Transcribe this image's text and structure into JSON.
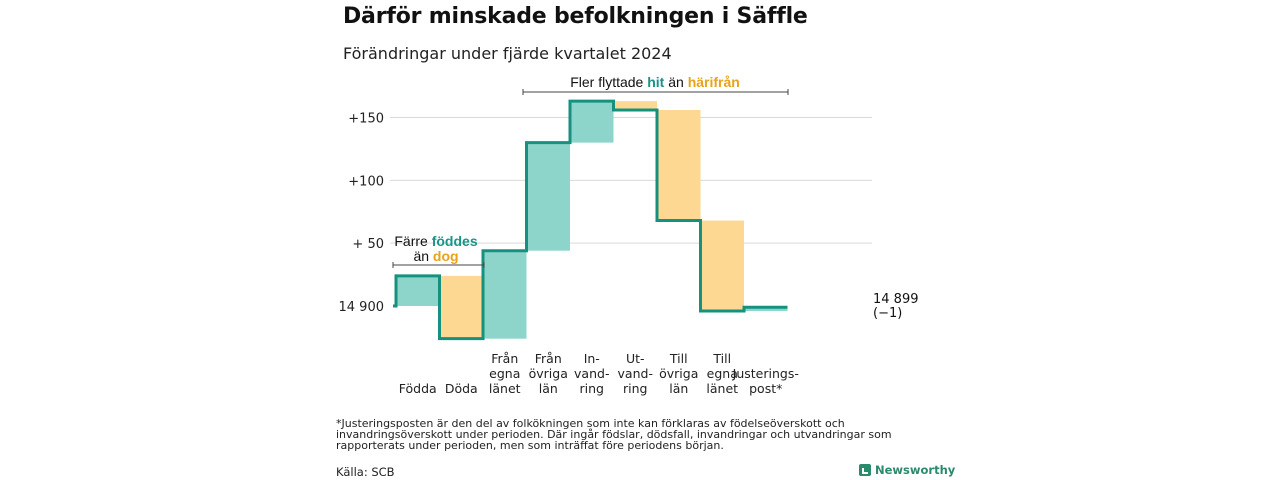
{
  "title": "Därför minskade befolkningen i Säffle",
  "subtitle": "Förändringar under fjärde kvartalet 2024",
  "annotations": {
    "left": {
      "pre": "Färre",
      "green": "föddes",
      "mid": "än",
      "orange": "dog"
    },
    "top": {
      "pre": "Fler flyttade",
      "green": "hit",
      "mid": "än",
      "orange": "härifrån"
    }
  },
  "end_label": {
    "value": "14 899",
    "change": "(−1)"
  },
  "footnote": "*Justeringsposten är den del av folkökningen som inte kan förklaras av födelseöverskott och invandringsöverskott under perioden. Där ingår födslar, dödsfall, invandringar och utvandringar som rapporterats under perioden, men som inträffat före periodens början.",
  "source": "Källa: SCB",
  "brand": "Newsworthy",
  "colors": {
    "increase": "#8dd5cb",
    "decrease": "#fdd893",
    "line": "#16917f",
    "grid": "#d9d9d9"
  },
  "chart_data": {
    "type": "bar",
    "subtype": "waterfall",
    "baseline": 14900,
    "end_value": 14899,
    "ylim": [
      -26,
      165
    ],
    "yticks": [
      {
        "value": 0,
        "label": "14 900"
      },
      {
        "value": 50,
        "label": "+ 50"
      },
      {
        "value": 100,
        "label": "+100"
      },
      {
        "value": 150,
        "label": "+150"
      }
    ],
    "steps": [
      {
        "label": [
          "Födda"
        ],
        "delta": 24
      },
      {
        "label": [
          "Döda"
        ],
        "delta": -50
      },
      {
        "label": [
          "Från",
          "egna",
          "länet"
        ],
        "delta": 70
      },
      {
        "label": [
          "Från",
          "övriga",
          "län"
        ],
        "delta": 86
      },
      {
        "label": [
          "In-",
          "vand-",
          "ring"
        ],
        "delta": 33
      },
      {
        "label": [
          "Ut-",
          "vand-",
          "ring"
        ],
        "delta": -7
      },
      {
        "label": [
          "Till",
          "övriga",
          "län"
        ],
        "delta": -88
      },
      {
        "label": [
          "Till",
          "egna",
          "länet"
        ],
        "delta": -72
      },
      {
        "label": [
          "Justerings-",
          "post*"
        ],
        "delta": 3
      }
    ]
  }
}
